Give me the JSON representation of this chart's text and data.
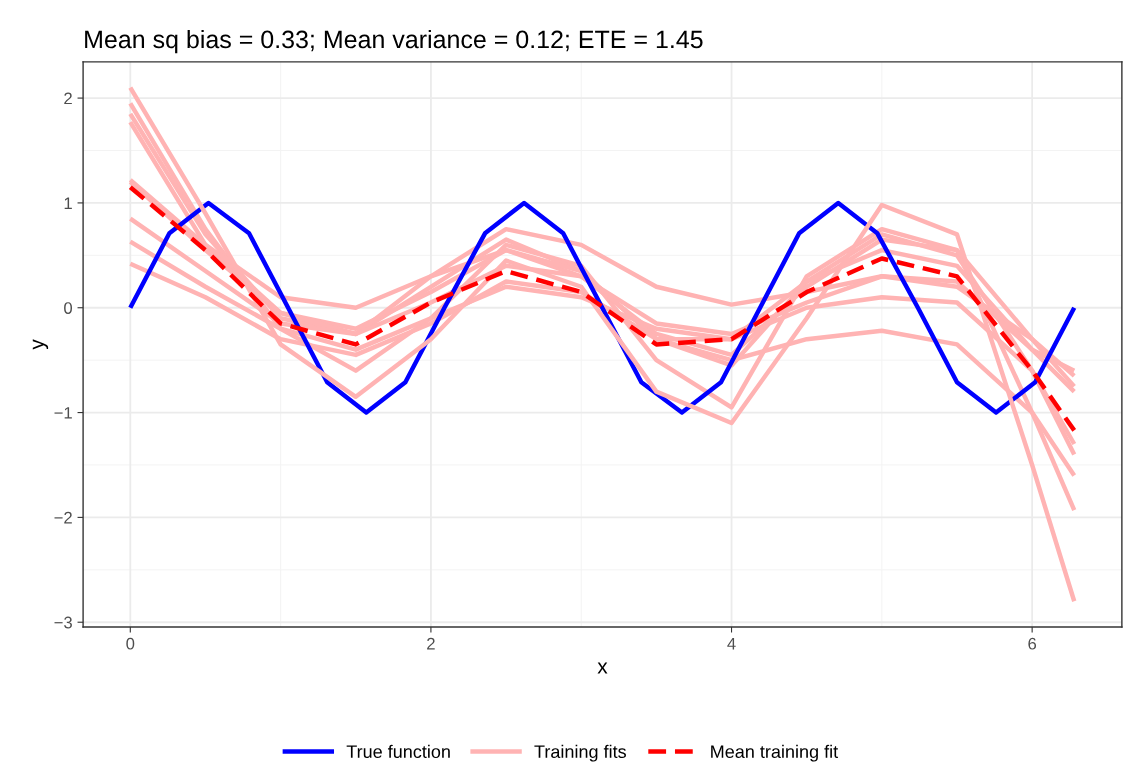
{
  "chart_data": {
    "type": "line",
    "title": "Mean sq bias = 0.33; Mean variance = 0.12; ETE = 1.45",
    "xlabel": "x",
    "ylabel": "y",
    "xlim": [
      -0.314,
      6.597
    ],
    "ylim": [
      -3.045,
      2.345
    ],
    "xticks": [
      0,
      2,
      4,
      6
    ],
    "yticks": [
      {
        "value": -3,
        "label": "−3"
      },
      {
        "value": -2,
        "label": "−2"
      },
      {
        "value": -1,
        "label": "−1"
      },
      0,
      1,
      2
    ],
    "grid": true,
    "legend": "bottom",
    "series": [
      {
        "name": "True function",
        "color": "#0000ff",
        "line_style": "solid",
        "x": [
          0,
          0.26,
          0.52,
          0.79,
          1.05,
          1.31,
          1.57,
          1.83,
          2.09,
          2.36,
          2.62,
          2.88,
          3.14,
          3.4,
          3.67,
          3.93,
          4.19,
          4.45,
          4.71,
          4.97,
          5.24,
          5.5,
          5.76,
          6.02,
          6.28
        ],
        "values": [
          0,
          0.71,
          1,
          0.71,
          0,
          -0.71,
          -1,
          -0.71,
          0,
          0.71,
          1,
          0.71,
          0,
          -0.71,
          -1,
          -0.71,
          0,
          0.71,
          1,
          0.71,
          0,
          -0.71,
          -1,
          -0.71,
          0
        ]
      },
      {
        "name": "Training fits",
        "color": "#ffb3b3",
        "line_style": "solid",
        "x": [
          0,
          0.5,
          1,
          1.5,
          2,
          2.5,
          3,
          3.5,
          4,
          4.5,
          5,
          5.5,
          6,
          6.28
        ],
        "values": [
          2.1,
          0.9,
          -0.35,
          -0.85,
          -0.3,
          0.45,
          0.2,
          -0.8,
          -1.1,
          -0.1,
          0.98,
          0.7,
          -1.5,
          -2.8
        ]
      },
      {
        "color": "#ffb3b3",
        "line_style": "solid",
        "x": [
          0,
          0.5,
          1,
          1.5,
          2,
          2.5,
          3,
          3.5,
          4,
          4.5,
          5,
          5.5,
          6,
          6.28
        ],
        "values": [
          1.95,
          0.75,
          -0.2,
          -0.6,
          -0.1,
          0.6,
          0.4,
          -0.5,
          -0.95,
          0.3,
          0.75,
          0.55,
          -1.0,
          -1.93
        ]
      },
      {
        "color": "#ffb3b3",
        "line_style": "solid",
        "x": [
          0,
          0.5,
          1,
          1.5,
          2,
          2.5,
          3,
          3.5,
          4,
          4.5,
          5,
          5.5,
          6,
          6.28
        ],
        "values": [
          1.85,
          0.7,
          -0.1,
          -0.25,
          0.2,
          0.65,
          0.35,
          -0.3,
          -0.55,
          0.25,
          0.7,
          0.5,
          -0.6,
          -1.4
        ]
      },
      {
        "color": "#ffb3b3",
        "line_style": "solid",
        "x": [
          0,
          0.5,
          1,
          1.5,
          2,
          2.5,
          3,
          3.5,
          4,
          4.5,
          5,
          5.5,
          6,
          6.28
        ],
        "values": [
          1.77,
          0.6,
          -0.05,
          -0.2,
          0.15,
          0.55,
          0.3,
          -0.25,
          -0.45,
          0.2,
          0.65,
          0.55,
          -0.3,
          -0.75
        ]
      },
      {
        "color": "#ffb3b3",
        "line_style": "solid",
        "x": [
          0,
          0.5,
          1,
          1.5,
          2,
          2.5,
          3,
          3.5,
          4,
          4.5,
          5,
          5.5,
          6,
          6.28
        ],
        "values": [
          1.22,
          0.6,
          0.1,
          0.0,
          0.3,
          0.75,
          0.6,
          0.2,
          0.03,
          0.15,
          0.3,
          0.2,
          -0.3,
          -0.65
        ]
      },
      {
        "color": "#ffb3b3",
        "line_style": "solid",
        "x": [
          0,
          0.5,
          1,
          1.5,
          2,
          2.5,
          3,
          3.5,
          4,
          4.5,
          5,
          5.5,
          6,
          6.28
        ],
        "values": [
          1.2,
          0.55,
          -0.05,
          -0.25,
          0.3,
          0.55,
          0.35,
          -0.3,
          -0.3,
          0.25,
          0.55,
          0.4,
          -0.4,
          -0.6
        ]
      },
      {
        "color": "#ffb3b3",
        "line_style": "solid",
        "x": [
          0,
          0.5,
          1,
          1.5,
          2,
          2.5,
          3,
          3.5,
          4,
          4.5,
          5,
          5.5,
          6,
          6.28
        ],
        "values": [
          0.85,
          0.35,
          -0.15,
          -0.25,
          0.05,
          0.4,
          0.3,
          -0.15,
          -0.25,
          0.05,
          0.3,
          0.25,
          -0.4,
          -0.8
        ]
      },
      {
        "color": "#ffb3b3",
        "line_style": "solid",
        "x": [
          0,
          0.5,
          1,
          1.5,
          2,
          2.5,
          3,
          3.5,
          4,
          4.5,
          5,
          5.5,
          6,
          6.28
        ],
        "values": [
          0.63,
          0.2,
          -0.2,
          -0.4,
          -0.1,
          0.2,
          0.1,
          -0.2,
          -0.3,
          0.0,
          0.1,
          0.05,
          -0.6,
          -1.3
        ]
      },
      {
        "color": "#ffb3b3",
        "line_style": "solid",
        "x": [
          0,
          0.5,
          1,
          1.5,
          2,
          2.5,
          3,
          3.5,
          4,
          4.5,
          5,
          5.5,
          6,
          6.28
        ],
        "values": [
          0.42,
          0.1,
          -0.3,
          -0.45,
          -0.15,
          0.25,
          0.15,
          -0.3,
          -0.5,
          -0.3,
          -0.22,
          -0.35,
          -1.0,
          -1.6
        ]
      },
      {
        "name": "Mean training fit",
        "color": "#ff0000",
        "line_style": "dashed",
        "x": [
          0,
          0.5,
          1,
          1.5,
          2,
          2.5,
          3,
          3.5,
          4,
          4.5,
          5,
          5.5,
          6,
          6.28
        ],
        "values": [
          1.15,
          0.55,
          -0.15,
          -0.35,
          0.05,
          0.35,
          0.15,
          -0.35,
          -0.3,
          0.15,
          0.47,
          0.3,
          -0.6,
          -1.17
        ]
      }
    ]
  }
}
